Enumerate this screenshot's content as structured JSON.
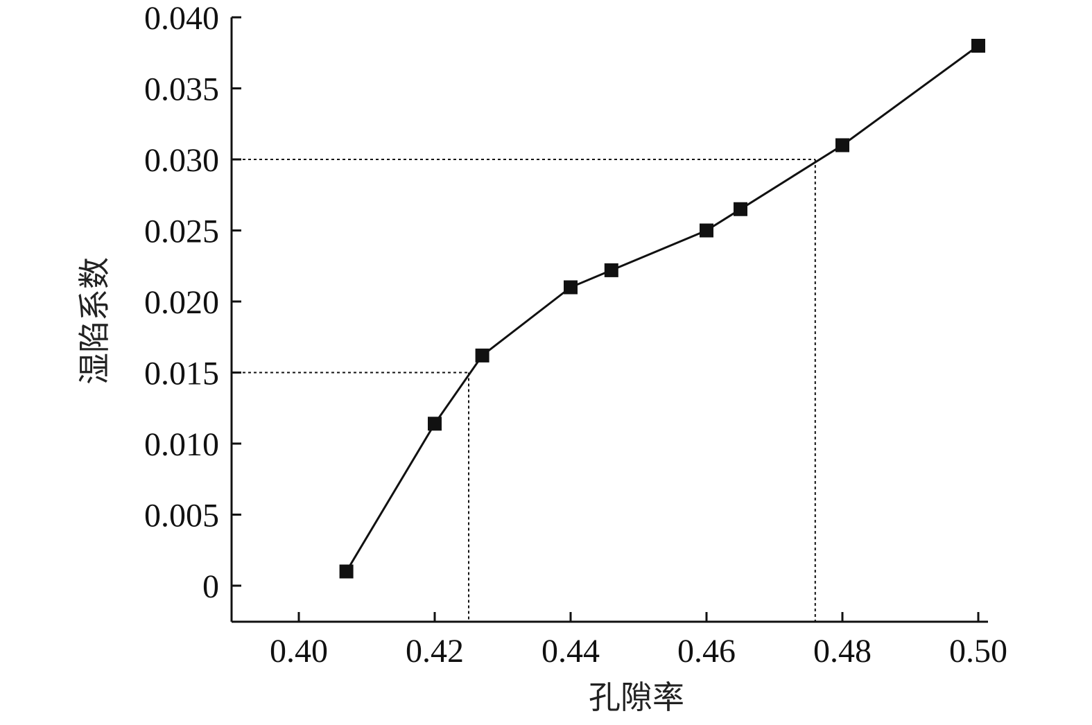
{
  "chart_data": {
    "type": "line",
    "xlabel": "孔隙率",
    "ylabel": "湿陷系数",
    "xlim": [
      0.39,
      0.5
    ],
    "ylim": [
      -0.0025,
      0.04
    ],
    "x_ticks": [
      "0.40",
      "0.42",
      "0.44",
      "0.46",
      "0.48",
      "0.50"
    ],
    "y_ticks": [
      "0",
      "0.005",
      "0.010",
      "0.015",
      "0.020",
      "0.025",
      "0.030",
      "0.035",
      "0.040"
    ],
    "series": [
      {
        "marker": "square",
        "color": "#111111",
        "x": [
          0.407,
          0.42,
          0.427,
          0.44,
          0.446,
          0.46,
          0.465,
          0.48,
          0.5
        ],
        "y": [
          0.001,
          0.0114,
          0.0162,
          0.021,
          0.0222,
          0.025,
          0.0265,
          0.031,
          0.038
        ]
      }
    ],
    "reference_lines": [
      {
        "x": 0.425,
        "y": 0.015,
        "style": "dotted"
      },
      {
        "x": 0.476,
        "y": 0.03,
        "style": "dotted"
      }
    ],
    "grid": false,
    "legend": "none"
  }
}
